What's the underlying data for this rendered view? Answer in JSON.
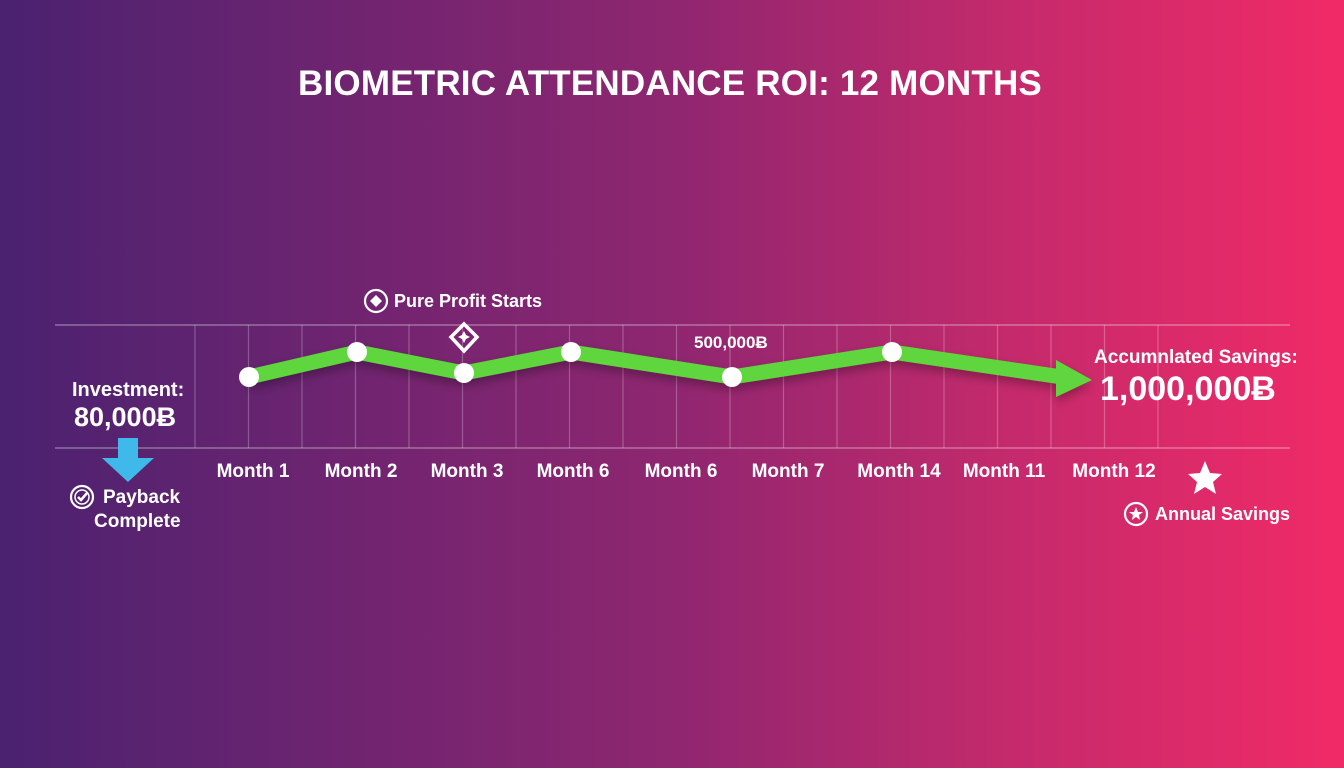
{
  "chart_data": {
    "type": "line",
    "title": "BIOMETRIC ATTENDANCE ROI: 12 MONTHS",
    "categories": [
      "Month 1",
      "Month 2",
      "Month 3",
      "Month 6",
      "Month 6",
      "Month 7",
      "Month 14",
      "Month 11",
      "Month 12"
    ],
    "series_color": "#5fd63c",
    "grid": true,
    "annotations": {
      "pure_profit": "Pure Profit Starts",
      "mid_value": "500,000Ƀ",
      "investment_label": "Investment:",
      "investment_value": "80,000Ƀ",
      "payback_line1": "Payback",
      "payback_line2": "Complete",
      "accumulated_label": "Accumnlated Savings:",
      "accumulated_value": "1,000,000Ƀ",
      "annual_savings": "Annual Savings"
    },
    "icons": {
      "pure_profit": "diamond-icon",
      "payback": "check-circle-icon",
      "annual": "star-circle-icon",
      "end": "star-icon",
      "investment": "down-arrow-icon"
    },
    "arrow_color": "#3fb8ea"
  }
}
